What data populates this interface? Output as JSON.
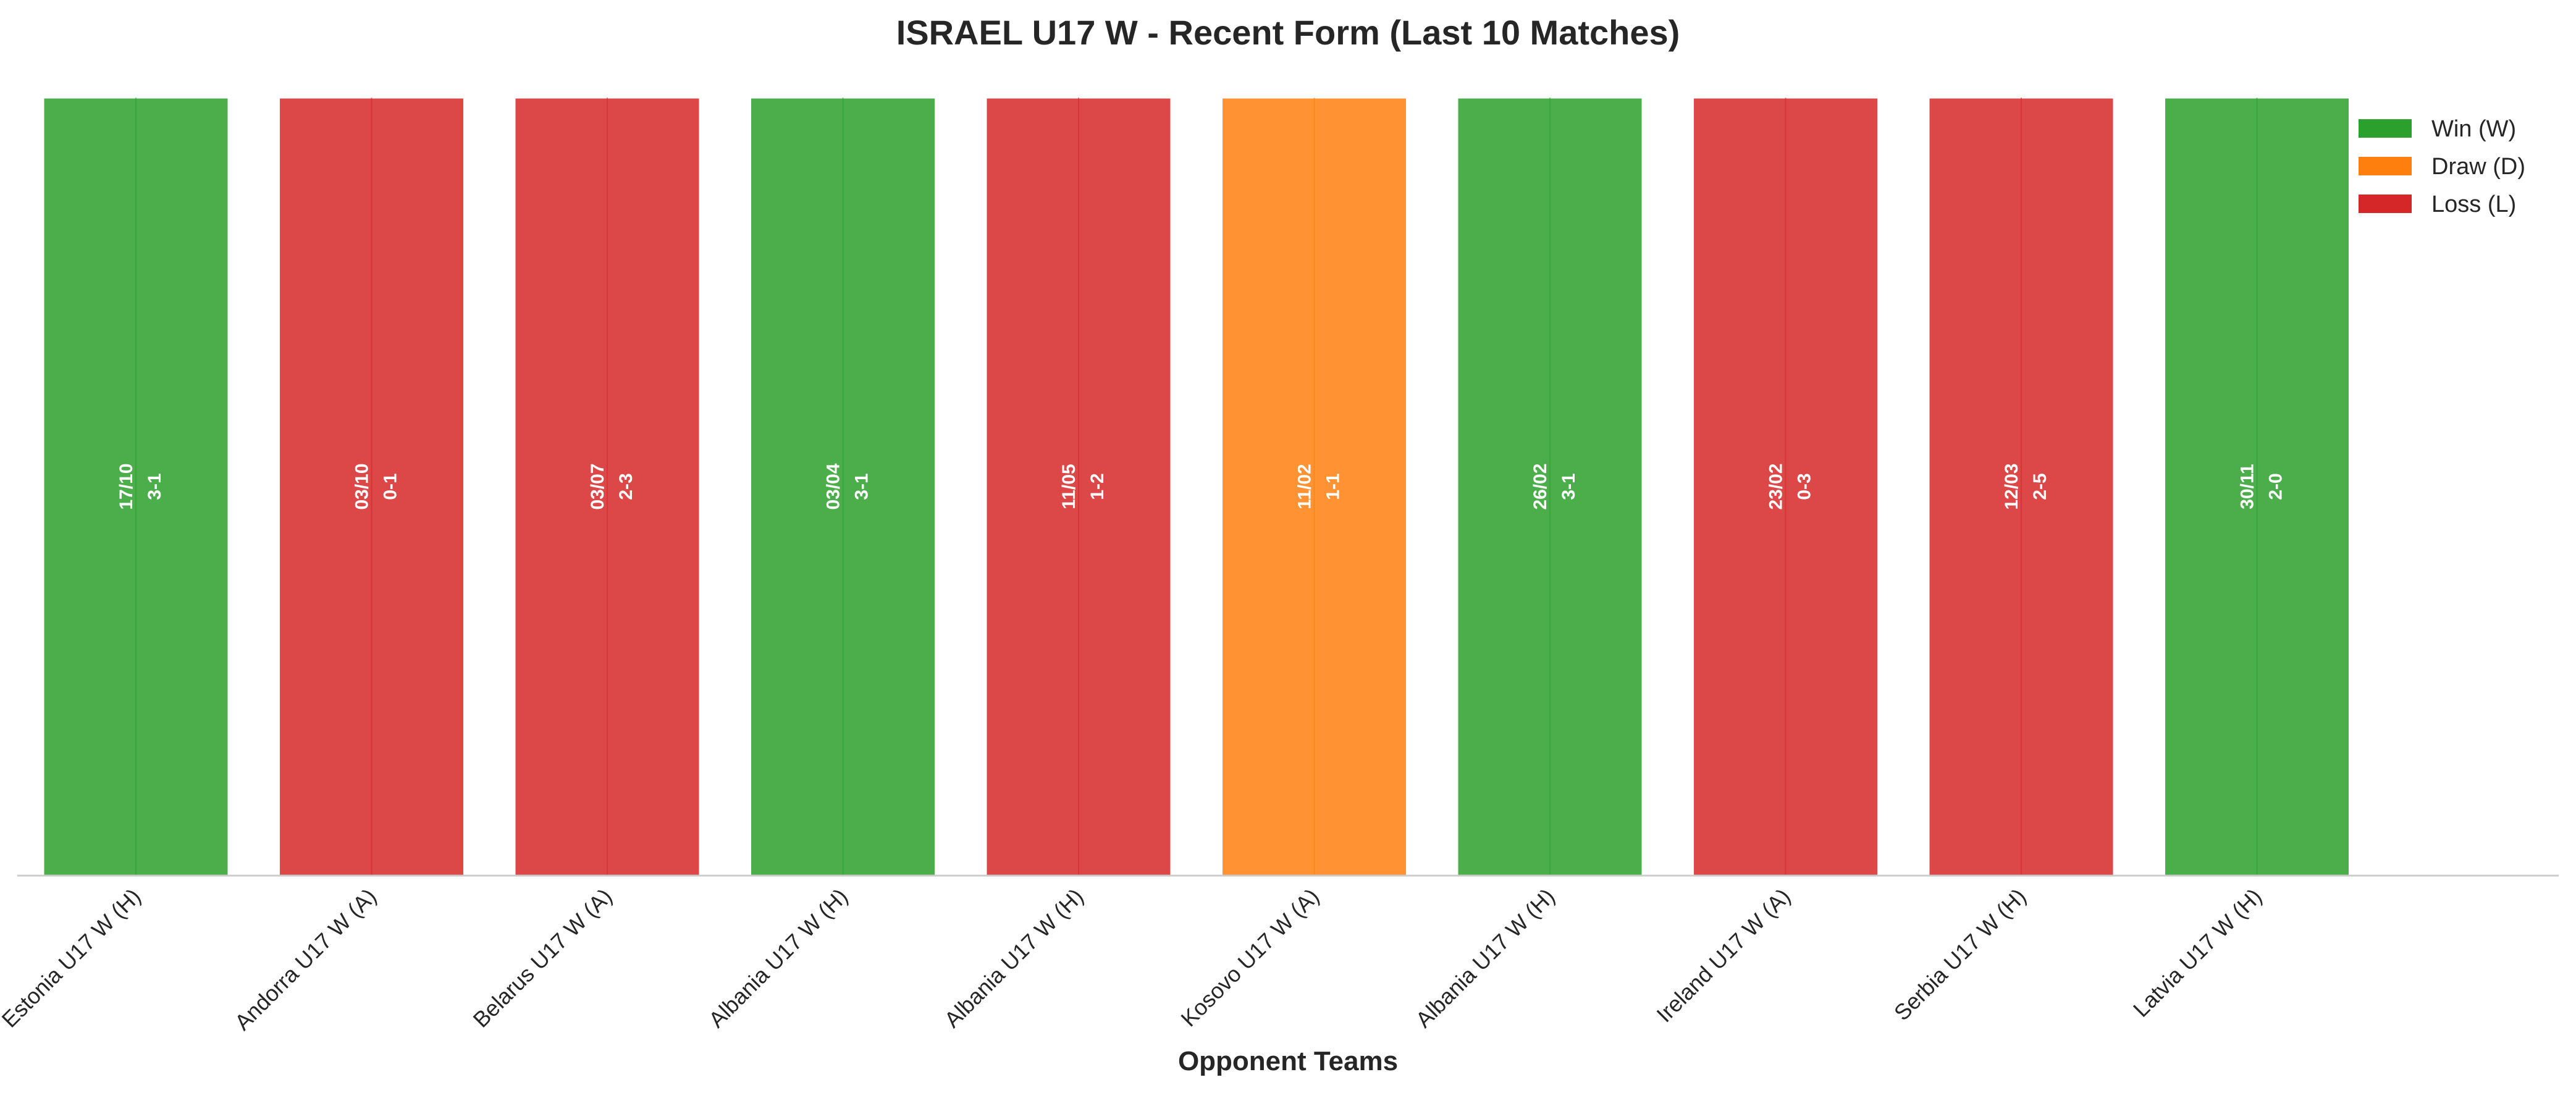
{
  "chart_data": {
    "type": "bar",
    "title": "ISRAEL U17 W - Recent Form (Last 10 Matches)",
    "xlabel": "Opponent Teams",
    "ylabel": "",
    "ylim": [
      0,
      1
    ],
    "grid": false,
    "legend_position": "top-right",
    "categories": [
      "Estonia U17 W (H)",
      "Andorra U17 W (A)",
      "Belarus U17 W (A)",
      "Albania U17 W (H)",
      "Albania U17 W (H)",
      "Kosovo U17 W (A)",
      "Albania U17 W (H)",
      "Ireland U17 W (A)",
      "Serbia U17 W (H)",
      "Latvia U17 W (H)"
    ],
    "values": [
      1,
      1,
      1,
      1,
      1,
      1,
      1,
      1,
      1,
      1
    ],
    "results": [
      "W",
      "L",
      "L",
      "W",
      "L",
      "D",
      "W",
      "L",
      "L",
      "W"
    ],
    "dates": [
      "17/10",
      "03/10",
      "03/07",
      "03/04",
      "11/05",
      "11/02",
      "26/02",
      "23/02",
      "12/03",
      "30/11"
    ],
    "scores": [
      "3-1",
      "0-1",
      "2-3",
      "3-1",
      "1-2",
      "1-1",
      "3-1",
      "0-3",
      "2-5",
      "2-0"
    ],
    "legend": [
      {
        "key": "W",
        "label": "Win (W)",
        "color": "#2ca02c"
      },
      {
        "key": "D",
        "label": "Draw (D)",
        "color": "#ff7f0e"
      },
      {
        "key": "L",
        "label": "Loss (L)",
        "color": "#d62728"
      }
    ]
  }
}
